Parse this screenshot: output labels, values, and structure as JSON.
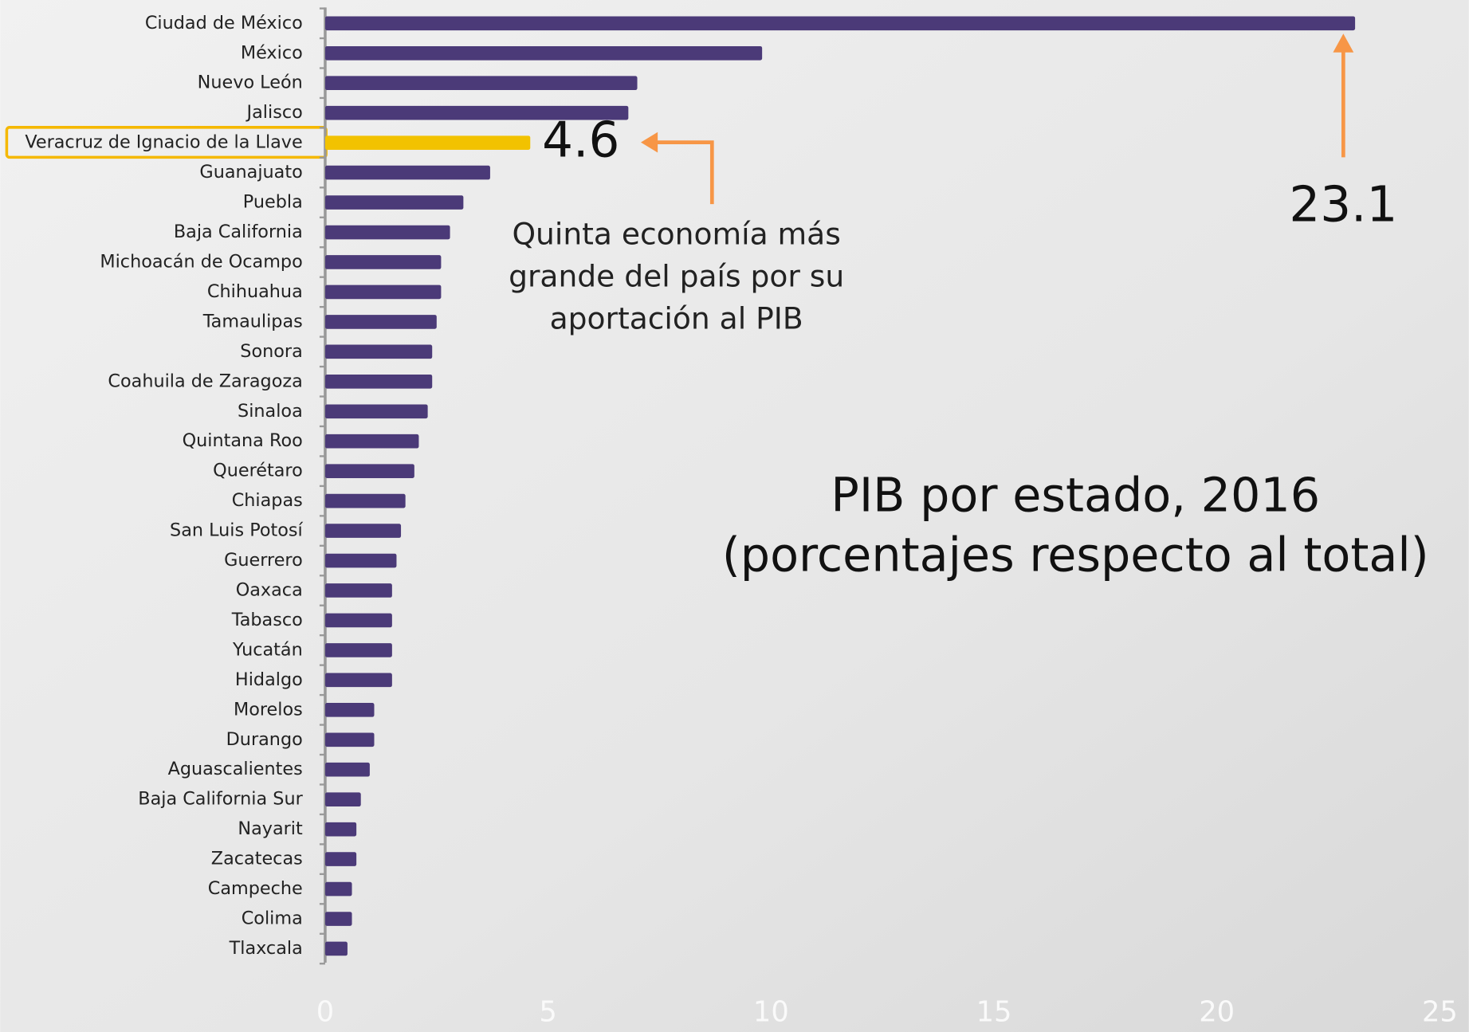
{
  "chart_data": {
    "type": "barh",
    "title": [
      "PIB por estado, 2016",
      "(porcentajes respecto al total)"
    ],
    "annotation": [
      "Quinta economía más",
      "grande del país por su",
      "aportación al PIB"
    ],
    "categories": [
      "Ciudad de México",
      "México",
      "Nuevo León",
      "Jalisco",
      "Veracruz de Ignacio de la Llave",
      "Guanajuato",
      "Puebla",
      "Baja California",
      "Michoacán de Ocampo",
      "Chihuahua",
      "Tamaulipas",
      "Sonora",
      "Coahuila de Zaragoza",
      "Sinaloa",
      "Quintana Roo",
      "Querétaro",
      "Chiapas",
      "San Luis Potosí",
      "Guerrero",
      "Oaxaca",
      "Tabasco",
      "Yucatán",
      "Hidalgo",
      "Morelos",
      "Durango",
      "Aguascalientes",
      "Baja California Sur",
      "Nayarit",
      "Zacatecas",
      "Campeche",
      "Colima",
      "Tlaxcala"
    ],
    "values": [
      23.1,
      9.8,
      7.0,
      6.8,
      4.6,
      3.7,
      3.1,
      2.8,
      2.6,
      2.6,
      2.5,
      2.4,
      2.4,
      2.3,
      2.1,
      2.0,
      1.8,
      1.7,
      1.6,
      1.5,
      1.5,
      1.5,
      1.5,
      1.1,
      1.1,
      1.0,
      0.8,
      0.7,
      0.7,
      0.6,
      0.6,
      0.5
    ],
    "colors": [
      "#4b3a78",
      "#4b3a78",
      "#4b3a78",
      "#4b3a78",
      "#f2c200",
      "#4b3a78",
      "#4b3a78",
      "#4b3a78",
      "#4b3a78",
      "#4b3a78",
      "#4b3a78",
      "#4b3a78",
      "#4b3a78",
      "#4b3a78",
      "#4b3a78",
      "#4b3a78",
      "#4b3a78",
      "#4b3a78",
      "#4b3a78",
      "#4b3a78",
      "#4b3a78",
      "#4b3a78",
      "#4b3a78",
      "#4b3a78",
      "#4b3a78",
      "#4b3a78",
      "#4b3a78",
      "#4b3a78",
      "#4b3a78",
      "#4b3a78",
      "#4b3a78",
      "#4b3a78"
    ],
    "xlim": [
      0,
      25
    ],
    "xticks": [
      0,
      5,
      10,
      15,
      20,
      25
    ]
  }
}
